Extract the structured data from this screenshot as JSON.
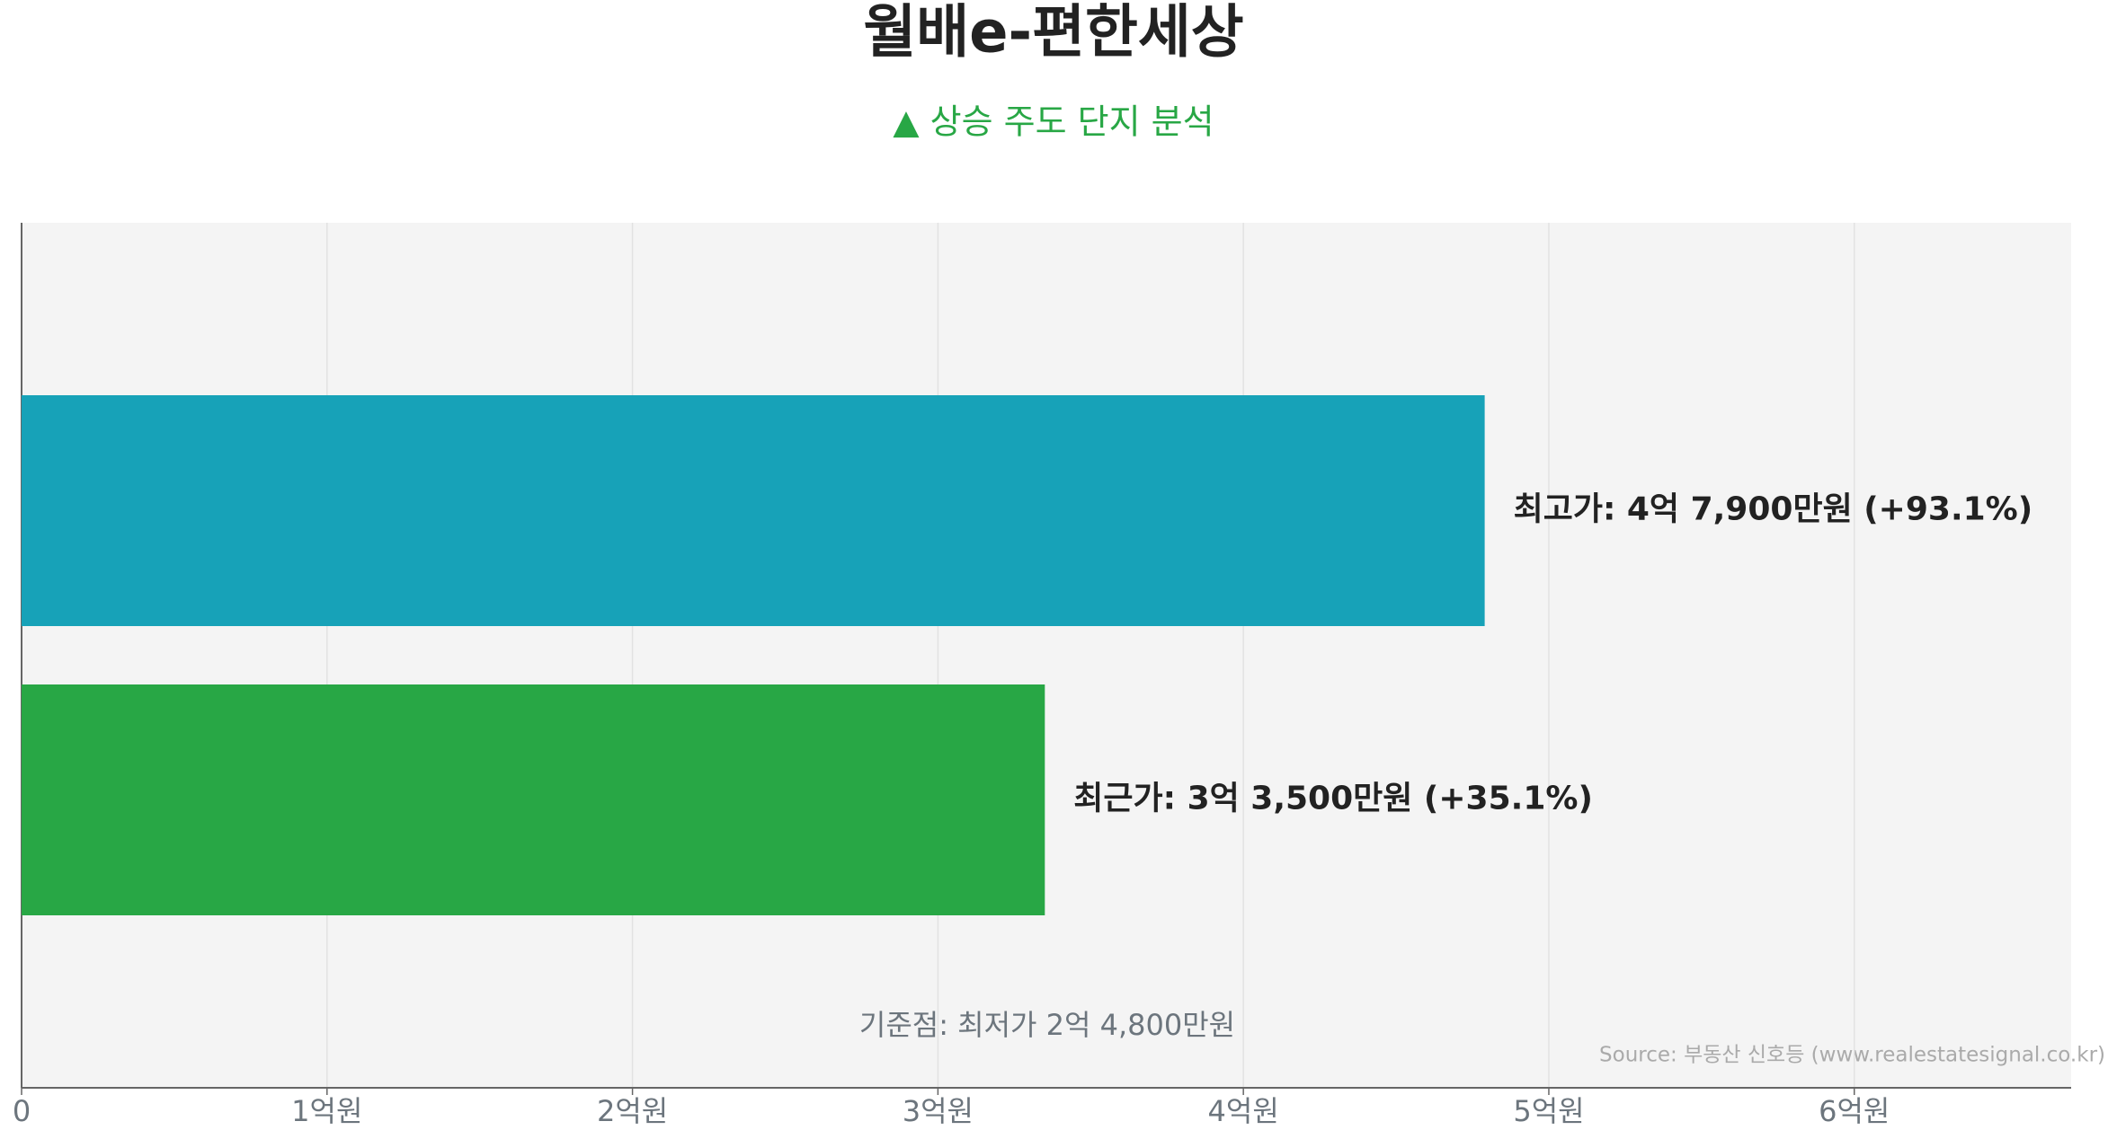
{
  "chart_data": {
    "type": "barh",
    "title": "월배e-편한세상",
    "subtitle": "▲ 상승 주도 단지 분석",
    "annotation": "기준점: 최저가 2억 4,800만원",
    "source": "Source: 부동산 신호등 (www.realestatesignal.co.kr)",
    "values": [
      4.79,
      3.35
    ],
    "value_labels": [
      "최고가: 4억 7,900만원 (+93.1%)",
      "최근가: 3억 3,500만원 (+35.1%)"
    ],
    "colors": [
      "#17a2b8",
      "#28a745"
    ],
    "xlim": [
      0,
      6.71
    ],
    "xticks": [
      0,
      {
        "value": 1,
        "label": "1억원"
      },
      {
        "value": 2,
        "label": "2억원"
      },
      {
        "value": 3,
        "label": "3억원"
      },
      {
        "value": 4,
        "label": "4억원"
      },
      {
        "value": 5,
        "label": "5억원"
      },
      {
        "value": 6,
        "label": "6억원"
      }
    ],
    "grid": true
  }
}
